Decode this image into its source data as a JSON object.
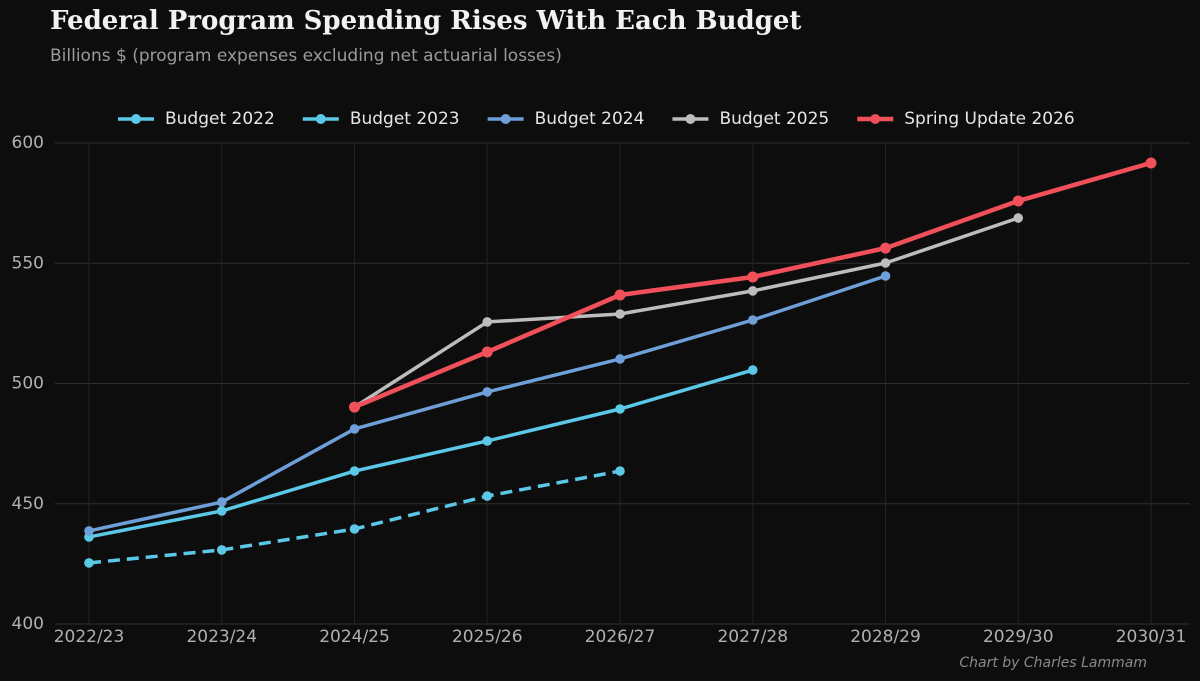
{
  "chart_data": {
    "type": "line",
    "title": "Federal Program Spending Rises With Each Budget",
    "subtitle": "Billions $ (program expenses excluding net actuarial losses)",
    "credit": "Chart by Charles Lammam",
    "categories": [
      "2022/23",
      "2023/24",
      "2024/25",
      "2025/26",
      "2026/27",
      "2027/28",
      "2028/29",
      "2029/30",
      "2030/31"
    ],
    "series": [
      {
        "name": "Budget 2022",
        "color": "#5bc8e8",
        "line_style": "dashed",
        "values": [
          425.4,
          430.8,
          439.5,
          453.2,
          463.6,
          null,
          null,
          null,
          null
        ]
      },
      {
        "name": "Budget 2023",
        "color": "#5bc8e8",
        "line_style": "solid",
        "values": [
          436.2,
          447.0,
          463.6,
          476.1,
          489.4,
          505.6,
          null,
          null,
          null
        ]
      },
      {
        "name": "Budget 2024",
        "color": "#6f9fd8",
        "line_style": "solid",
        "values": [
          438.7,
          450.7,
          481.1,
          496.5,
          510.2,
          526.4,
          544.7,
          null,
          null
        ]
      },
      {
        "name": "Budget 2025",
        "color": "#bdbdbd",
        "line_style": "solid",
        "values": [
          null,
          null,
          490.2,
          525.6,
          528.9,
          538.5,
          550.1,
          568.8,
          null
        ]
      },
      {
        "name": "Spring Update 2026",
        "color": "#f0505a",
        "line_style": "solid",
        "values": [
          null,
          null,
          490.2,
          513.1,
          536.8,
          544.3,
          556.3,
          575.9,
          591.7
        ]
      }
    ],
    "ylim": [
      400,
      600
    ],
    "yticks": [
      400,
      450,
      500,
      550,
      600
    ],
    "grid": true,
    "legend": "top"
  }
}
